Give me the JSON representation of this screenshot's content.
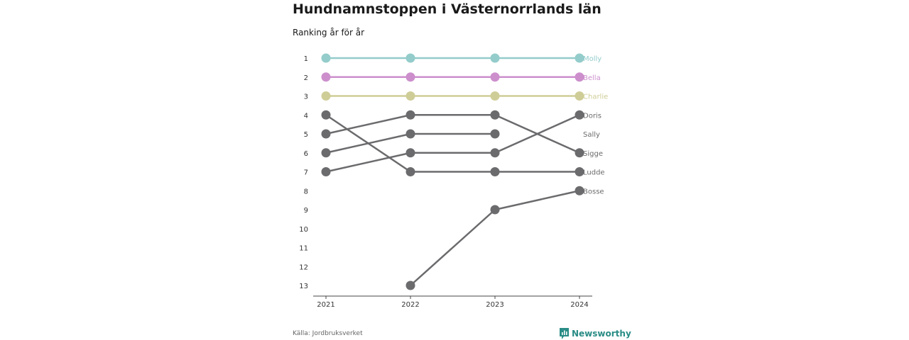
{
  "title": "Hundnamnstoppen i Västernorrlands län",
  "subtitle": "Ranking år för år",
  "source": "Källa: Jordbruksverket",
  "brand": "Newsworthy",
  "colors": {
    "gray": "#6b6b6e",
    "teal": "#2a8c86"
  },
  "chart_data": {
    "type": "line",
    "x": [
      "2021",
      "2022",
      "2023",
      "2024"
    ],
    "y_ticks": [
      1,
      2,
      3,
      4,
      5,
      6,
      7,
      8,
      9,
      10,
      11,
      12,
      13
    ],
    "y_reversed": true,
    "series": [
      {
        "name": "Molly",
        "values": [
          1,
          1,
          1,
          1
        ],
        "color": "#93cccb"
      },
      {
        "name": "Bella",
        "values": [
          2,
          2,
          2,
          2
        ],
        "color": "#cc8fcc"
      },
      {
        "name": "Charlie",
        "values": [
          3,
          3,
          3,
          3
        ],
        "color": "#cfcd97"
      },
      {
        "name": "Doris",
        "values": [
          7,
          6,
          6,
          4
        ],
        "color": "#6b6b6e"
      },
      {
        "name": "Sally",
        "values": [
          null,
          null,
          null,
          null
        ],
        "color": "#6b6b6e"
      },
      {
        "name": "Sigge",
        "values": [
          5,
          4,
          4,
          6
        ],
        "color": "#6b6b6e"
      },
      {
        "name": "Ludde",
        "values": [
          4,
          7,
          7,
          7
        ],
        "color": "#6b6b6e"
      },
      {
        "name": "Bosse",
        "values": [
          null,
          13,
          9,
          8
        ],
        "color": "#6b6b6e"
      },
      {
        "name": "",
        "values": [
          6,
          5,
          5,
          null
        ],
        "color": "#6b6b6e"
      }
    ]
  }
}
